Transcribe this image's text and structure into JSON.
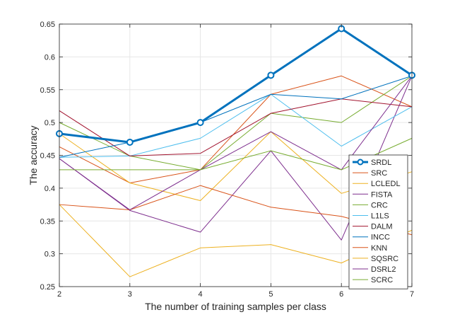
{
  "chart_data": {
    "type": "line",
    "xlabel": "The number of training samples per class",
    "ylabel": "The accuracy",
    "x": [
      2,
      3,
      4,
      5,
      6,
      7
    ],
    "xlim": [
      2,
      7
    ],
    "ylim": [
      0.25,
      0.65
    ],
    "x_ticks": [
      "2",
      "3",
      "4",
      "5",
      "6",
      "7"
    ],
    "y_ticks": [
      "0.25",
      "0.3",
      "0.35",
      "0.4",
      "0.45",
      "0.5",
      "0.55",
      "0.6",
      "0.65"
    ],
    "grid": true,
    "legend_position": "bottom-right",
    "series": [
      {
        "name": "SRDL",
        "color": "#0072BD",
        "emphasis": true,
        "values": [
          0.483,
          0.47,
          0.5,
          0.572,
          0.643,
          0.572
        ]
      },
      {
        "name": "SRC",
        "color": "#D95319",
        "values": [
          0.463,
          0.408,
          0.428,
          0.543,
          0.571,
          0.524
        ]
      },
      {
        "name": "LCLEDL",
        "color": "#EDB120",
        "values": [
          0.483,
          0.408,
          0.381,
          0.486,
          0.392,
          0.425
        ]
      },
      {
        "name": "FISTA",
        "color": "#7E2F8E",
        "values": [
          0.445,
          0.366,
          0.333,
          0.457,
          0.321,
          0.571
        ]
      },
      {
        "name": "CRC",
        "color": "#77AC30",
        "values": [
          0.5,
          0.449,
          0.428,
          0.514,
          0.5,
          0.571
        ]
      },
      {
        "name": "L1LS",
        "color": "#4DBEEE",
        "values": [
          0.447,
          0.449,
          0.476,
          0.543,
          0.464,
          0.524
        ]
      },
      {
        "name": "DALM",
        "color": "#A2142F",
        "values": [
          0.518,
          0.449,
          0.453,
          0.514,
          0.536,
          0.524
        ]
      },
      {
        "name": "INCC",
        "color": "#0072BD",
        "values": [
          0.447,
          0.47,
          0.5,
          0.543,
          0.536,
          0.571
        ]
      },
      {
        "name": "KNN",
        "color": "#D95319",
        "values": [
          0.375,
          0.367,
          0.404,
          0.371,
          0.357,
          0.329
        ]
      },
      {
        "name": "SQSRC",
        "color": "#EDB120",
        "values": [
          0.375,
          0.265,
          0.309,
          0.314,
          0.286,
          0.336
        ]
      },
      {
        "name": "DSRL2",
        "color": "#7E2F8E",
        "values": [
          0.445,
          0.367,
          0.428,
          0.486,
          0.428,
          0.571
        ]
      },
      {
        "name": "SCRC",
        "color": "#77AC30",
        "values": [
          0.428,
          0.428,
          0.428,
          0.457,
          0.428,
          0.476
        ]
      }
    ]
  }
}
